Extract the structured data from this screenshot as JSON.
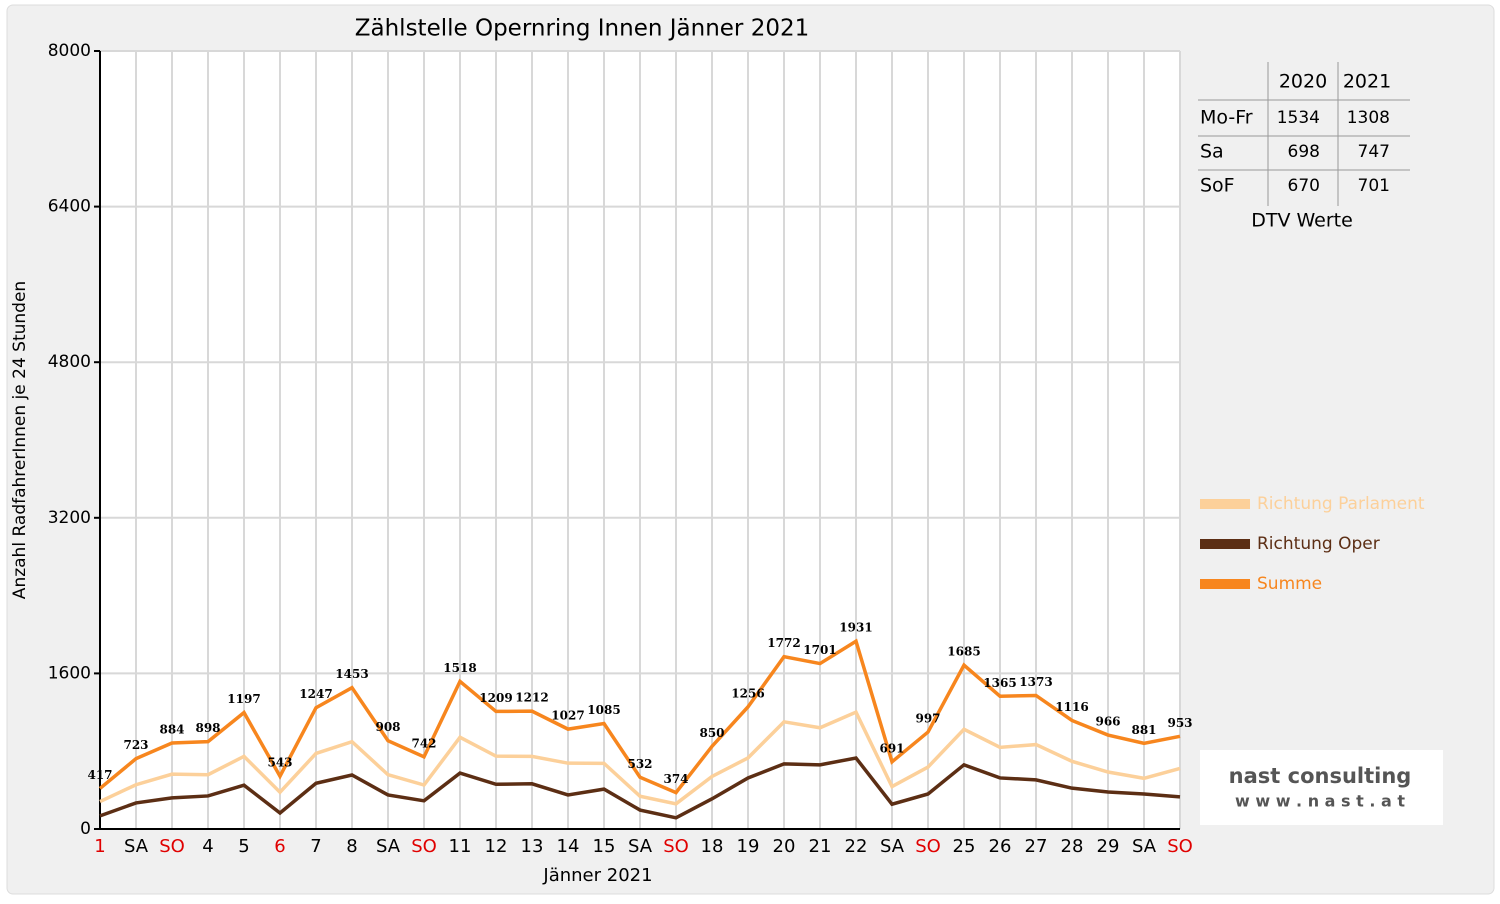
{
  "chart_data": {
    "type": "line",
    "title": "Zählstelle Opernring Innen Jänner 2021",
    "x_label": "Jänner 2021",
    "y_label": "Anzahl RadfahrerInnen je 24 Stunden",
    "categories": [
      "1",
      "SA",
      "SO",
      "4",
      "5",
      "6",
      "7",
      "8",
      "SA",
      "SO",
      "11",
      "12",
      "13",
      "14",
      "15",
      "SA",
      "SO",
      "18",
      "19",
      "20",
      "21",
      "22",
      "SA",
      "SO",
      "25",
      "26",
      "27",
      "28",
      "29",
      "SA",
      "SO"
    ],
    "category_colors": [
      "#e00000",
      "#000000",
      "#e00000",
      "#000000",
      "#000000",
      "#e00000",
      "#000000",
      "#000000",
      "#000000",
      "#e00000",
      "#000000",
      "#000000",
      "#000000",
      "#000000",
      "#000000",
      "#000000",
      "#e00000",
      "#000000",
      "#000000",
      "#000000",
      "#000000",
      "#000000",
      "#000000",
      "#e00000",
      "#000000",
      "#000000",
      "#000000",
      "#000000",
      "#000000",
      "#000000",
      "#e00000"
    ],
    "series": [
      {
        "name": "Richtung Parlament",
        "color": "#fcd09a",
        "values": [
          282,
          455,
          564,
          558,
          747,
          378,
          777,
          898,
          558,
          452,
          943,
          749,
          747,
          677,
          675,
          337,
          259,
          540,
          731,
          1102,
          1041,
          1201,
          436,
          637,
          1025,
          840,
          868,
          696,
          586,
          521,
          623
        ]
      },
      {
        "name": "Richtung Oper",
        "color": "#5c2e14",
        "values": [
          135,
          268,
          320,
          340,
          450,
          165,
          470,
          555,
          350,
          290,
          575,
          460,
          465,
          350,
          410,
          195,
          115,
          310,
          525,
          670,
          660,
          730,
          255,
          360,
          660,
          525,
          505,
          420,
          380,
          360,
          330
        ]
      },
      {
        "name": "Summe",
        "color": "#f7861e",
        "values": [
          417,
          723,
          884,
          898,
          1197,
          543,
          1247,
          1453,
          908,
          742,
          1518,
          1209,
          1212,
          1027,
          1085,
          532,
          374,
          850,
          1256,
          1772,
          1701,
          1931,
          691,
          997,
          1685,
          1365,
          1373,
          1116,
          966,
          881,
          953
        ]
      }
    ],
    "labeled_series": 2,
    "ylim": [
      0,
      8000
    ],
    "yticks": [
      0,
      1600,
      3200,
      4800,
      6400,
      8000
    ],
    "grid": true
  },
  "dtv_table": {
    "columns": [
      "2020",
      "2021"
    ],
    "rows": [
      {
        "label": "Mo-Fr",
        "values": [
          1534,
          1308
        ]
      },
      {
        "label": "Sa",
        "values": [
          698,
          747
        ]
      },
      {
        "label": "SoF",
        "values": [
          670,
          701
        ]
      }
    ],
    "caption": "DTV Werte"
  },
  "logo": {
    "name": "nast consulting",
    "url": "w w w . n a s t . a t"
  }
}
